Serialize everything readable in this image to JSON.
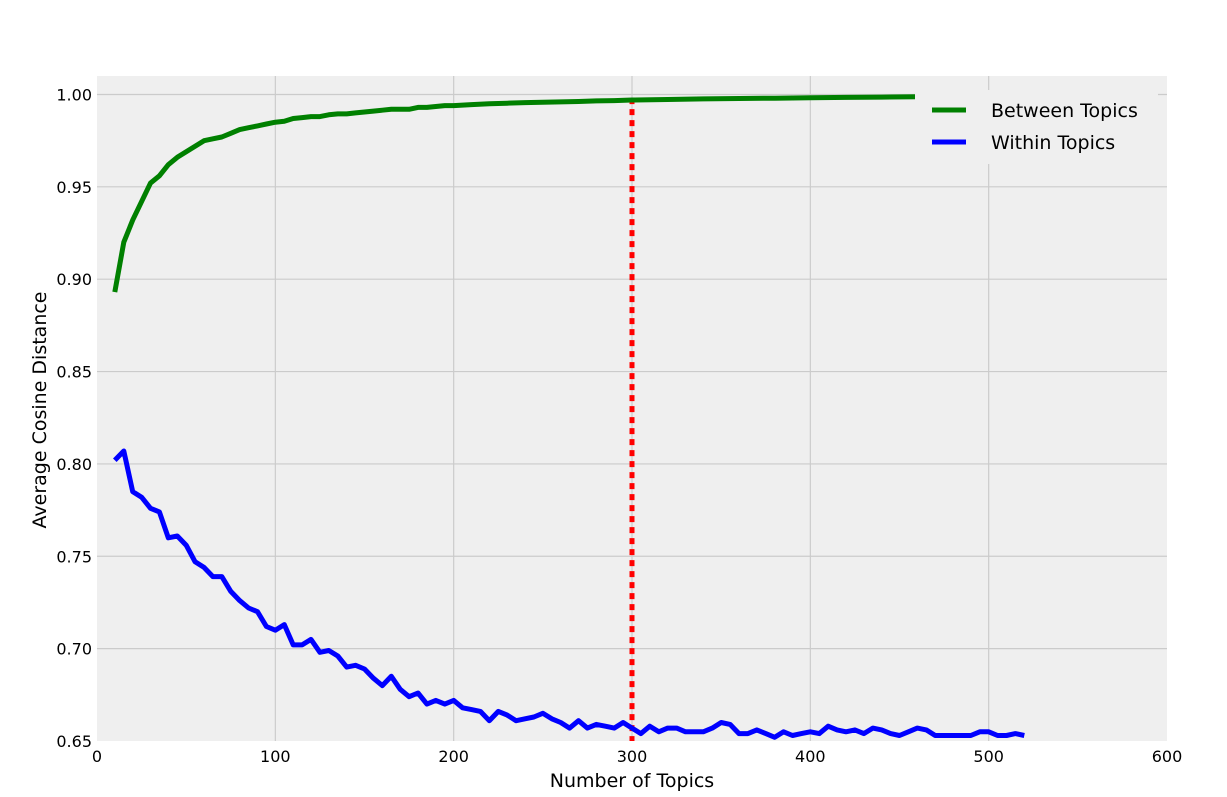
{
  "chart_data": {
    "type": "line",
    "title": "",
    "xlabel": "Number of Topics",
    "ylabel": "Average Cosine Distance",
    "xlim": [
      0,
      600
    ],
    "ylim": [
      0.65,
      1.01
    ],
    "xticks": [
      0,
      100,
      200,
      300,
      400,
      500,
      600
    ],
    "yticks": [
      0.65,
      0.7,
      0.75,
      0.8,
      0.85,
      0.9,
      0.95,
      1.0
    ],
    "xtick_labels": [
      "0",
      "100",
      "200",
      "300",
      "400",
      "500",
      "600"
    ],
    "ytick_labels": [
      "0.65",
      "0.70",
      "0.75",
      "0.80",
      "0.85",
      "0.90",
      "0.95",
      "1.00"
    ],
    "grid": true,
    "legend_position": "top-right",
    "background": "#efefef",
    "series": [
      {
        "name": "Between Topics",
        "color": "#008000",
        "x": [
          10,
          15,
          20,
          25,
          30,
          35,
          40,
          45,
          50,
          55,
          60,
          65,
          70,
          75,
          80,
          85,
          90,
          95,
          100,
          105,
          110,
          115,
          120,
          125,
          130,
          135,
          140,
          145,
          150,
          155,
          160,
          165,
          170,
          175,
          180,
          185,
          190,
          195,
          200,
          210,
          220,
          230,
          240,
          250,
          260,
          270,
          280,
          290,
          300,
          320,
          340,
          360,
          380,
          400,
          420,
          440,
          460
        ],
        "y": [
          0.893,
          0.92,
          0.932,
          0.942,
          0.952,
          0.956,
          0.962,
          0.966,
          0.969,
          0.972,
          0.975,
          0.976,
          0.977,
          0.979,
          0.981,
          0.982,
          0.983,
          0.984,
          0.985,
          0.9855,
          0.987,
          0.9875,
          0.988,
          0.988,
          0.989,
          0.9895,
          0.9895,
          0.99,
          0.9905,
          0.991,
          0.9915,
          0.992,
          0.992,
          0.992,
          0.993,
          0.993,
          0.9935,
          0.994,
          0.994,
          0.9945,
          0.995,
          0.9953,
          0.9956,
          0.9958,
          0.996,
          0.9962,
          0.9965,
          0.9967,
          0.997,
          0.9973,
          0.9976,
          0.9978,
          0.998,
          0.9982,
          0.9984,
          0.9986,
          0.9988
        ]
      },
      {
        "name": "Within Topics",
        "color": "#0000ff",
        "x": [
          10,
          15,
          20,
          25,
          30,
          35,
          40,
          45,
          50,
          55,
          60,
          65,
          70,
          75,
          80,
          85,
          90,
          95,
          100,
          105,
          110,
          115,
          120,
          125,
          130,
          135,
          140,
          145,
          150,
          155,
          160,
          165,
          170,
          175,
          180,
          185,
          190,
          195,
          200,
          205,
          210,
          215,
          220,
          225,
          230,
          235,
          240,
          245,
          250,
          255,
          260,
          265,
          270,
          275,
          280,
          285,
          290,
          295,
          300,
          305,
          310,
          315,
          320,
          325,
          330,
          335,
          340,
          345,
          350,
          355,
          360,
          365,
          370,
          375,
          380,
          385,
          390,
          395,
          400,
          405,
          410,
          415,
          420,
          425,
          430,
          435,
          440,
          445,
          450,
          455,
          460,
          465,
          470,
          475,
          480,
          485,
          490,
          495,
          500,
          505,
          510,
          515,
          520
        ],
        "y": [
          0.802,
          0.807,
          0.785,
          0.782,
          0.776,
          0.774,
          0.76,
          0.761,
          0.756,
          0.747,
          0.744,
          0.739,
          0.739,
          0.731,
          0.726,
          0.722,
          0.72,
          0.712,
          0.71,
          0.713,
          0.702,
          0.702,
          0.705,
          0.698,
          0.699,
          0.696,
          0.69,
          0.691,
          0.689,
          0.684,
          0.68,
          0.685,
          0.678,
          0.674,
          0.676,
          0.67,
          0.672,
          0.67,
          0.672,
          0.668,
          0.667,
          0.666,
          0.661,
          0.666,
          0.664,
          0.661,
          0.662,
          0.663,
          0.665,
          0.662,
          0.66,
          0.657,
          0.661,
          0.657,
          0.659,
          0.658,
          0.657,
          0.66,
          0.657,
          0.654,
          0.658,
          0.655,
          0.657,
          0.657,
          0.655,
          0.655,
          0.655,
          0.657,
          0.66,
          0.659,
          0.654,
          0.654,
          0.656,
          0.654,
          0.652,
          0.655,
          0.653,
          0.654,
          0.655,
          0.654,
          0.658,
          0.656,
          0.655,
          0.656,
          0.654,
          0.657,
          0.656,
          0.654,
          0.653,
          0.655,
          0.657,
          0.656,
          0.653,
          0.653,
          0.653,
          0.653,
          0.653,
          0.655,
          0.655,
          0.653,
          0.653,
          0.654,
          0.653
        ]
      }
    ],
    "reference_line": {
      "x": 300,
      "y_from": 0.65,
      "y_to": 0.998,
      "color": "#ff0000",
      "style": "dotted"
    }
  }
}
